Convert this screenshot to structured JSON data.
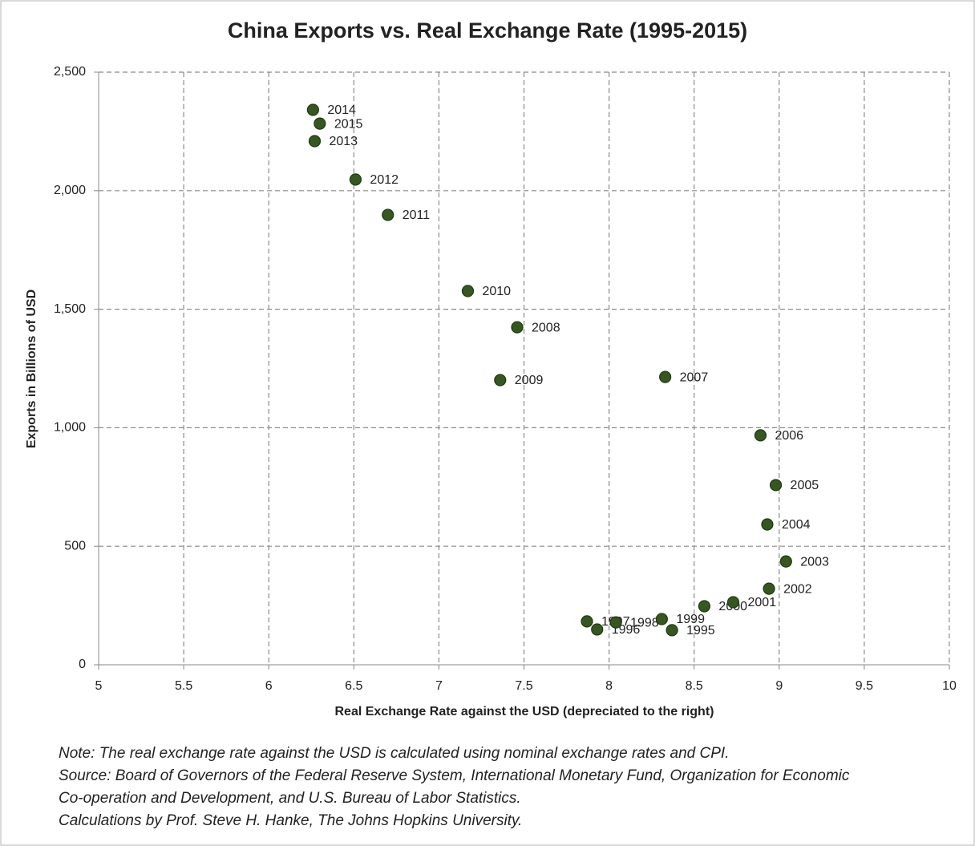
{
  "chart_data": {
    "type": "scatter",
    "title": "China Exports vs. Real Exchange Rate (1995-2015)",
    "x_label": "Real Exchange Rate against the USD (depreciated to the right)",
    "y_label": "Exports in Billions of USD",
    "labels": [
      "1995",
      "1996",
      "1997",
      "1998",
      "1999",
      "2000",
      "2001",
      "2002",
      "2003",
      "2004",
      "2005",
      "2006",
      "2007",
      "2008",
      "2009",
      "2010",
      "2011",
      "2012",
      "2013",
      "2014",
      "2015"
    ],
    "x": [
      8.37,
      7.93,
      7.87,
      8.04,
      8.31,
      8.56,
      8.73,
      8.94,
      9.04,
      8.93,
      8.98,
      8.89,
      8.33,
      7.46,
      7.36,
      7.17,
      6.7,
      6.51,
      6.27,
      6.26,
      6.3
    ],
    "values": [
      146,
      149,
      183,
      179,
      193,
      247,
      264,
      321,
      436,
      592,
      758,
      968,
      1214,
      1424,
      1201,
      1577,
      1898,
      2047,
      2209,
      2341,
      2283
    ],
    "color": "#375623",
    "xlim": [
      5,
      10
    ],
    "xticks": [
      5,
      5.5,
      6,
      6.5,
      7,
      7.5,
      8,
      8.5,
      9,
      9.5,
      10
    ],
    "ylim": [
      0,
      2500
    ],
    "yticks": [
      0,
      500,
      {
        "value": 1000,
        "label": "1,000"
      },
      {
        "value": 1500,
        "label": "1,500"
      },
      {
        "value": 2000,
        "label": "2,000"
      },
      {
        "value": 2500,
        "label": "2,500"
      }
    ],
    "grid": true,
    "notes": [
      "Note: The real exchange rate against the USD is calculated using nominal exchange rates and CPI.",
      "Source: Board of Governors of the Federal Reserve System, International Monetary Fund, Organization for Economic",
      "Co-operation and Development, and U.S. Bureau of Labor Statistics.",
      "Calculations by Prof. Steve H. Hanke, The Johns Hopkins University."
    ]
  }
}
